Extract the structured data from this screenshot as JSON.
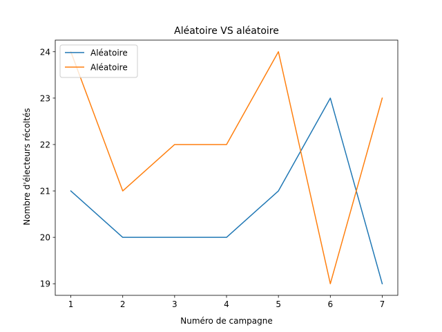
{
  "chart_data": {
    "type": "line",
    "title": "Aléatoire VS aléatoire",
    "xlabel": "Numéro de campagne",
    "ylabel": "Nombre d'électeurs récoltés",
    "x": [
      1,
      2,
      3,
      4,
      5,
      6,
      7
    ],
    "xticks": [
      "1",
      "2",
      "3",
      "4",
      "5",
      "6",
      "7"
    ],
    "yticks": [
      "19",
      "20",
      "21",
      "22",
      "23",
      "24"
    ],
    "xlim": [
      0.7,
      7.3
    ],
    "ylim": [
      18.75,
      24.25
    ],
    "grid": false,
    "legend_position": "top-left",
    "series": [
      {
        "name": "Aléatoire",
        "color": "#1f77b4",
        "values": [
          21,
          20,
          20,
          20,
          21,
          23,
          19
        ]
      },
      {
        "name": "Aléatoire",
        "color": "#ff7f0e",
        "values": [
          24,
          21,
          22,
          22,
          24,
          19,
          23
        ]
      }
    ]
  }
}
